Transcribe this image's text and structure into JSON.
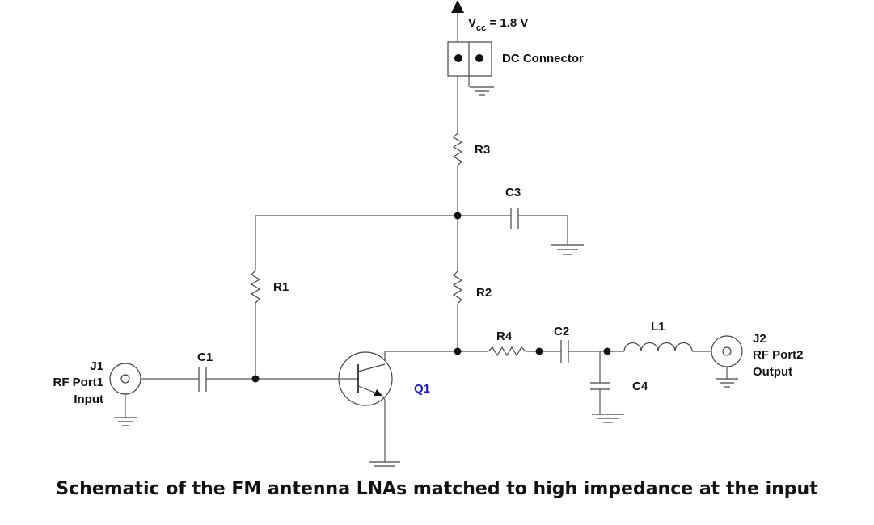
{
  "supply": {
    "v_prefix": "V",
    "v_sub": "cc",
    "v_value": "= 1.8 V"
  },
  "components": {
    "dc_connector": "DC Connector",
    "r1": "R1",
    "r2": "R2",
    "r3": "R3",
    "r4": "R4",
    "c1": "C1",
    "c2": "C2",
    "c3": "C3",
    "c4": "C4",
    "l1": "L1",
    "q1": "Q1"
  },
  "ports": {
    "j1": {
      "name": "J1",
      "label": "RF Port1",
      "role": "Input"
    },
    "j2": {
      "name": "J2",
      "label": "RF Port2",
      "role": "Output"
    }
  },
  "colors": {
    "q1_label": "#1a1ad6"
  },
  "caption": "Schematic of  the FM antenna LNAs matched to high impedance at the input"
}
